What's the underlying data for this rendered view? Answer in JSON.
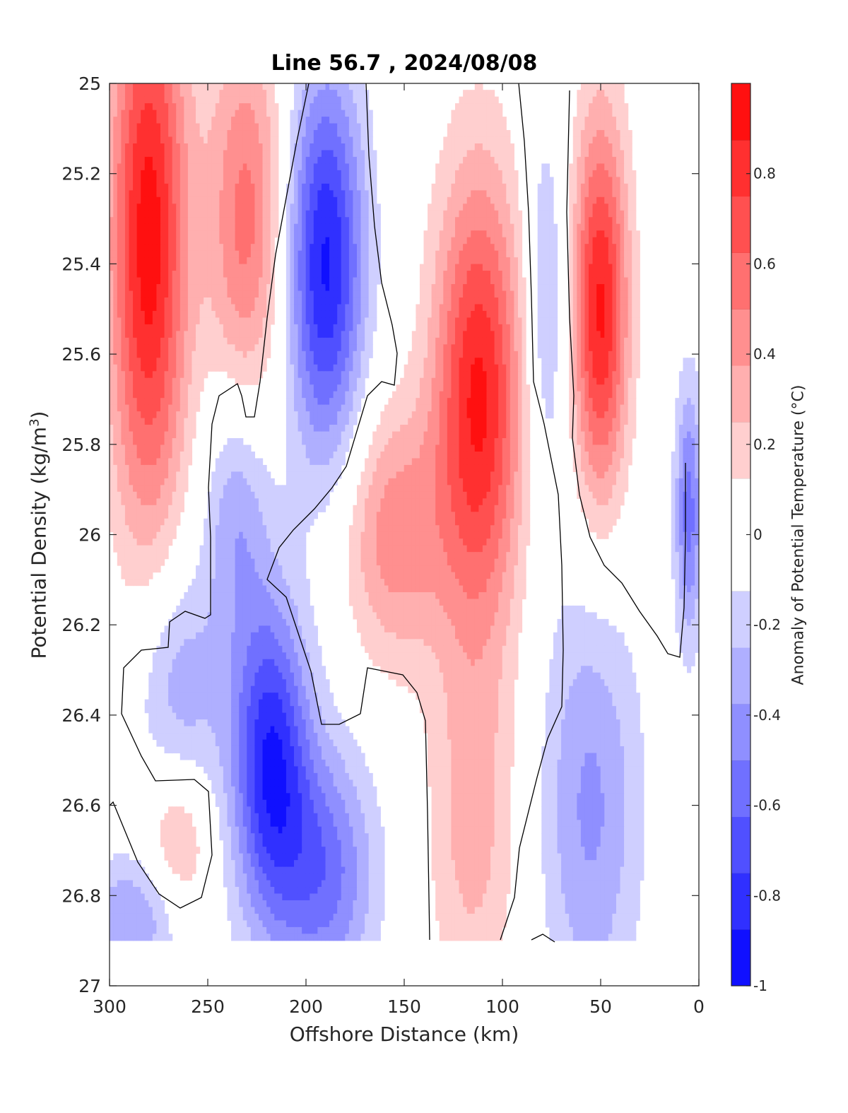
{
  "chart_data": {
    "type": "heatmap",
    "title": "Line 56.7 , 2024/08/08",
    "xlabel": "Offshore Distance (km)",
    "ylabel": "Potential Density",
    "ylabel_units": "(kg/m",
    "ylabel_units_sup": "3",
    "ylabel_units_close": ")",
    "colorbar_label": "Anomaly of Potential Temperature (°C)",
    "xlim": [
      300,
      0
    ],
    "ylim": [
      25,
      27
    ],
    "y_reversed": true,
    "x_ticks": [
      "300",
      "250",
      "200",
      "150",
      "100",
      "50",
      "0"
    ],
    "x_tick_values": [
      300,
      250,
      200,
      150,
      100,
      50,
      0
    ],
    "y_ticks": [
      "25",
      "25.2",
      "25.4",
      "25.6",
      "25.8",
      "26",
      "26.2",
      "26.4",
      "26.6",
      "26.8",
      "27"
    ],
    "y_tick_values": [
      25,
      25.2,
      25.4,
      25.6,
      25.8,
      26,
      26.2,
      26.4,
      26.6,
      26.8,
      27
    ],
    "colorbar_ticks": [
      "-1",
      "-0.8",
      "-0.6",
      "-0.4",
      "-0.2",
      "0",
      "0.2",
      "0.4",
      "0.6",
      "0.8"
    ],
    "colorbar_tick_values": [
      -1,
      -0.8,
      -0.6,
      -0.4,
      -0.2,
      0,
      0.2,
      0.4,
      0.6,
      0.8
    ],
    "clim": [
      -1,
      1
    ],
    "levels": 16,
    "colormap": "blue-white-red",
    "colors": {
      "min": "#0000ff",
      "zero": "#ffffff",
      "max": "#ff0000"
    },
    "data_region": {
      "x": [
        300,
        0
      ],
      "y": [
        25,
        26.9
      ]
    },
    "anomaly_features": [
      {
        "x": 280,
        "y": 25.35,
        "value": 0.95,
        "sx": 14,
        "sy": 0.45
      },
      {
        "x": 230,
        "y": 25.3,
        "value": 0.55,
        "sx": 14,
        "sy": 0.3
      },
      {
        "x": 190,
        "y": 25.4,
        "value": -0.9,
        "sx": 14,
        "sy": 0.3
      },
      {
        "x": 112,
        "y": 25.7,
        "value": 0.9,
        "sx": 16,
        "sy": 0.35
      },
      {
        "x": 78,
        "y": 25.5,
        "value": -0.3,
        "sx": 8,
        "sy": 0.3
      },
      {
        "x": 50,
        "y": 25.5,
        "value": 0.9,
        "sx": 10,
        "sy": 0.3
      },
      {
        "x": 155,
        "y": 26.0,
        "value": 0.45,
        "sx": 18,
        "sy": 0.2
      },
      {
        "x": 235,
        "y": 25.95,
        "value": -0.35,
        "sx": 12,
        "sy": 0.2
      },
      {
        "x": 218,
        "y": 26.5,
        "value": -0.85,
        "sx": 14,
        "sy": 0.25
      },
      {
        "x": 190,
        "y": 26.75,
        "value": -0.55,
        "sx": 18,
        "sy": 0.2
      },
      {
        "x": 265,
        "y": 26.35,
        "value": -0.35,
        "sx": 16,
        "sy": 0.2
      },
      {
        "x": 265,
        "y": 26.7,
        "value": 0.35,
        "sx": 12,
        "sy": 0.15
      },
      {
        "x": 115,
        "y": 26.65,
        "value": 0.3,
        "sx": 16,
        "sy": 0.3
      },
      {
        "x": 55,
        "y": 26.6,
        "value": -0.4,
        "sx": 18,
        "sy": 0.35
      },
      {
        "x": 5,
        "y": 25.95,
        "value": -0.55,
        "sx": 5,
        "sy": 0.2
      },
      {
        "x": 285,
        "y": 26.85,
        "value": -0.4,
        "sx": 20,
        "sy": 0.1
      }
    ]
  }
}
